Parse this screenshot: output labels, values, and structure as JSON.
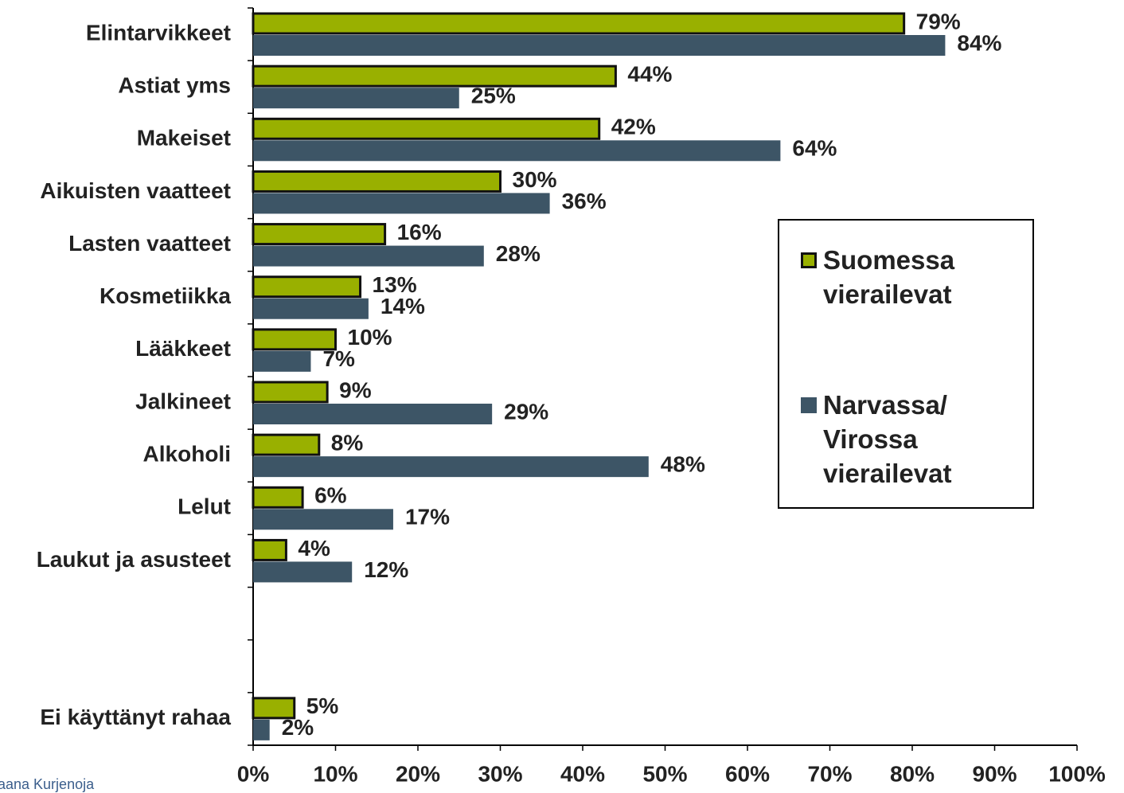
{
  "chart_data": {
    "type": "bar",
    "orientation": "horizontal",
    "categories": [
      "Elintarvikkeet",
      "Astiat yms",
      "Makeiset",
      "Aikuisten vaatteet",
      "Lasten vaatteet",
      "Kosmetiikka",
      "Lääkkeet",
      "Jalkineet",
      "Alkoholi",
      "Lelut",
      "Laukut ja asusteet",
      null,
      null,
      "Ei käyttänyt rahaa"
    ],
    "series": [
      {
        "name": "Suomessa vierailevat",
        "color": "#99b000",
        "values": [
          79,
          44,
          42,
          30,
          16,
          13,
          10,
          9,
          8,
          6,
          4,
          null,
          null,
          5
        ],
        "value_labels": [
          "79%",
          "44%",
          "42%",
          "30%",
          "16%",
          "13%",
          "10%",
          "9%",
          "8%",
          "6%",
          "4%",
          null,
          null,
          "5%"
        ]
      },
      {
        "name": "Narvassa/ Virossa vierailevat",
        "color": "#3d5566",
        "values": [
          84,
          25,
          64,
          36,
          28,
          14,
          7,
          29,
          48,
          17,
          12,
          null,
          null,
          2
        ],
        "value_labels": [
          "84%",
          "25%",
          "64%",
          "36%",
          "28%",
          "14%",
          "7%",
          "29%",
          "48%",
          "17%",
          "12%",
          null,
          null,
          "2%"
        ]
      }
    ],
    "xlim": [
      0,
      100
    ],
    "xticks": [
      {
        "value": 0,
        "label": "0%"
      },
      {
        "value": 10,
        "label": "10%"
      },
      {
        "value": 20,
        "label": "20%"
      },
      {
        "value": 30,
        "label": "30%"
      },
      {
        "value": 40,
        "label": "40%"
      },
      {
        "value": 50,
        "label": "50%"
      },
      {
        "value": 60,
        "label": "60%"
      },
      {
        "value": 70,
        "label": "70%"
      },
      {
        "value": 80,
        "label": "80%"
      },
      {
        "value": 90,
        "label": "90%"
      },
      {
        "value": 100,
        "label": "100%"
      }
    ],
    "legend": "right",
    "footer": "Jaana Kurjenoja"
  }
}
